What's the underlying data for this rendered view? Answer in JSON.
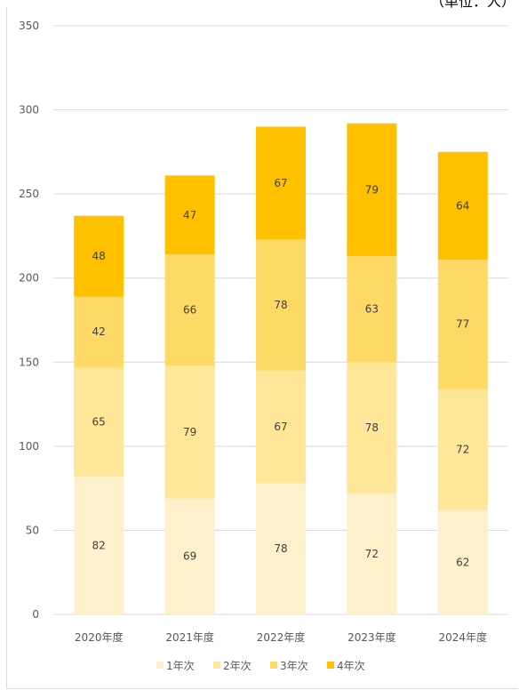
{
  "chart_data": {
    "type": "bar",
    "stacked": true,
    "unit_label": "（単位：人）",
    "categories": [
      "2020年度",
      "2021年度",
      "2022年度",
      "2023年度",
      "2024年度"
    ],
    "series": [
      {
        "name": "1年次",
        "color": "#fff0cc",
        "values": [
          82,
          69,
          78,
          72,
          62
        ]
      },
      {
        "name": "2年次",
        "color": "#ffe699",
        "values": [
          65,
          79,
          67,
          78,
          72
        ]
      },
      {
        "name": "3年次",
        "color": "#ffd966",
        "values": [
          42,
          66,
          78,
          63,
          77
        ]
      },
      {
        "name": "4年次",
        "color": "#ffc000",
        "values": [
          48,
          47,
          67,
          79,
          64
        ]
      }
    ],
    "yticks": [
      "0",
      "50",
      "100",
      "150",
      "200",
      "250",
      "300",
      "350"
    ],
    "ylim": [
      0,
      350
    ],
    "grid": true,
    "legend_position": "bottom"
  }
}
